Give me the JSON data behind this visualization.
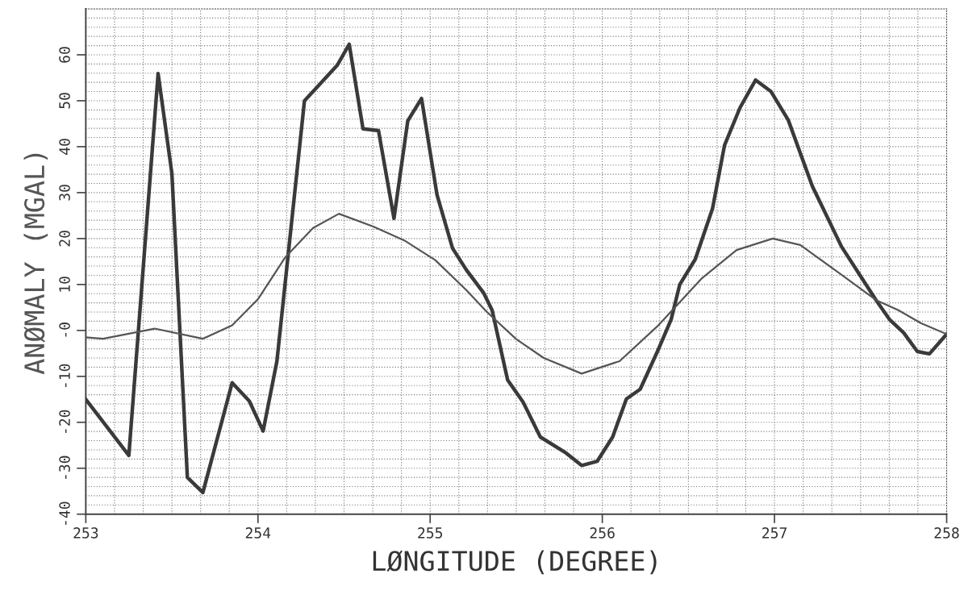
{
  "chart_data": {
    "type": "line",
    "xlabel": "LØNGITUDE (DEGREE)",
    "ylabel": "ANØMALY (MGAL)",
    "xlim": [
      253,
      258
    ],
    "xticks": [
      253,
      254,
      255,
      256,
      257,
      258
    ],
    "ylim": [
      -40,
      70
    ],
    "yticks": [
      -40,
      -30,
      -20,
      -10,
      {
        "value": 0,
        "label": "-0"
      },
      10,
      20,
      30,
      40,
      50,
      60
    ],
    "grid": true,
    "marker": "none",
    "line_style": "solid",
    "series": [
      {
        "color": "#3a3a3a",
        "x": [
          253,
          253.25,
          253.42,
          253.5,
          253.59,
          253.68,
          253.85,
          253.95,
          254.03,
          254.11,
          254.27,
          254.32,
          254.46,
          254.53,
          254.61,
          254.7,
          254.79,
          254.87,
          254.95,
          255.04,
          255.13,
          255.21,
          255.31,
          255.36,
          255.45,
          255.54,
          255.64,
          255.79,
          255.88,
          255.97,
          256.06,
          256.14,
          256.22,
          256.32,
          256.4,
          256.45,
          256.54,
          256.64,
          256.71,
          256.8,
          256.89,
          256.98,
          257.08,
          257.22,
          257.39,
          257.59,
          257.67,
          257.75,
          257.83,
          257.9,
          258
        ],
        "values": [
          -15,
          -27.2,
          55.9,
          34.2,
          -32,
          -35.3,
          -11.4,
          -15.4,
          -21.9,
          -6.7,
          50,
          52,
          57.7,
          62.3,
          43.9,
          43.5,
          24.4,
          45.6,
          50.5,
          29.5,
          17.9,
          13.2,
          8.2,
          4.4,
          -10.8,
          -15.6,
          -23.2,
          -26.7,
          -29.4,
          -28.5,
          -23.2,
          -14.9,
          -12.8,
          -4.6,
          2.4,
          10,
          15.5,
          26.5,
          40.3,
          48.5,
          54.5,
          52,
          45.8,
          31.4,
          18.2,
          6.6,
          2.3,
          -0.5,
          -4.6,
          -5.1,
          -0.8
        ]
      },
      {
        "color": "#555555",
        "x": [
          253,
          253.1,
          253.4,
          253.68,
          253.85,
          254,
          254.16,
          254.32,
          254.47,
          254.67,
          254.85,
          255.03,
          255.21,
          255.33,
          255.5,
          255.66,
          255.88,
          256.1,
          256.32,
          256.58,
          256.78,
          256.99,
          257.15,
          257.39,
          257.59,
          257.72,
          257.85,
          258
        ],
        "values": [
          -1.5,
          -1.8,
          0.4,
          -1.8,
          1.1,
          6.8,
          16,
          22.3,
          25.4,
          22.6,
          19.6,
          15.3,
          8.8,
          4,
          -1.9,
          -6,
          -9.4,
          -6.7,
          0.9,
          11.4,
          17.5,
          20,
          18.6,
          12.1,
          6.6,
          4.4,
          1.6,
          -0.8
        ]
      }
    ]
  }
}
